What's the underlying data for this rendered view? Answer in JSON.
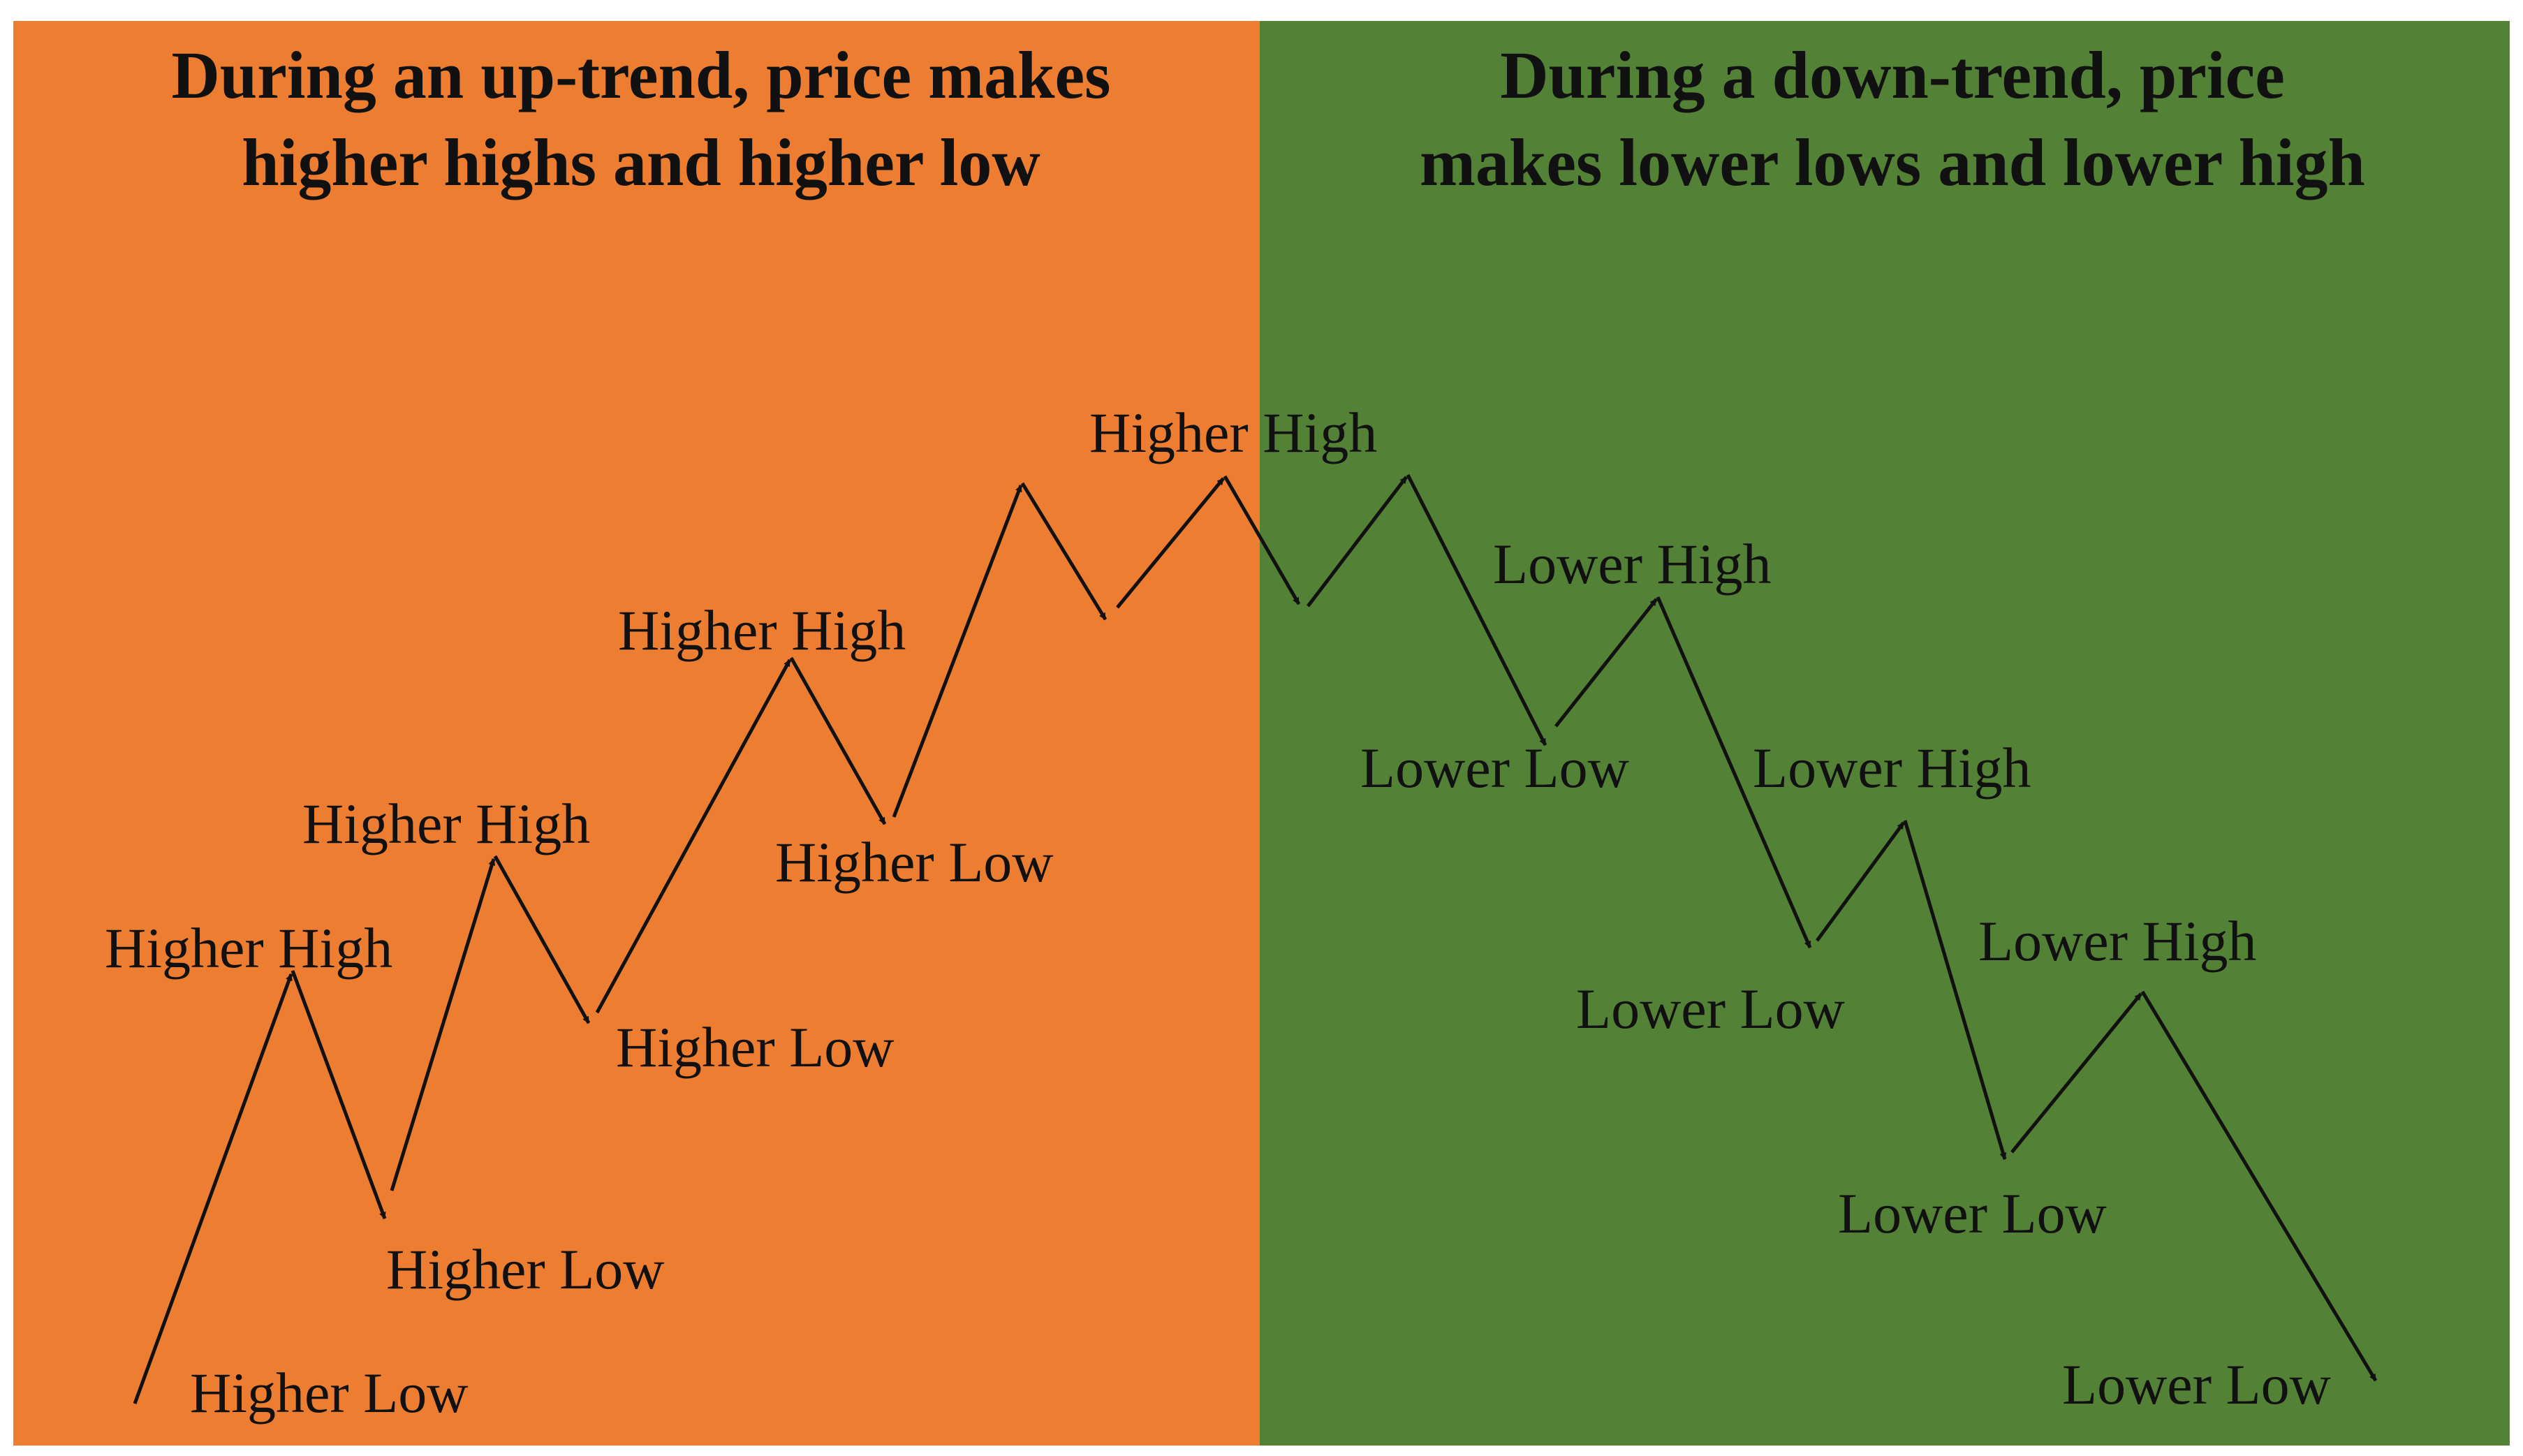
{
  "colors": {
    "uptrend_panel": "#ED7D31",
    "downtrend_panel": "#538135",
    "line": "#111111",
    "text": "#111111"
  },
  "uptrend": {
    "heading_line1": "During an up-trend, price makes",
    "heading_line2": "higher highs and higher low",
    "labels": {
      "higher_low_1": "Higher Low",
      "higher_high_1": "Higher High",
      "higher_low_2": "Higher Low",
      "higher_high_2": "Higher High",
      "higher_low_3": "Higher Low",
      "higher_high_3": "Higher High",
      "higher_low_4": "Higher Low",
      "higher_high_4": "Higher High"
    }
  },
  "downtrend": {
    "heading_line1": "During a down-trend, price",
    "heading_line2": "makes lower lows and lower high",
    "labels": {
      "lower_low_1": "Lower Low",
      "lower_high_1": "Lower High",
      "lower_low_2": "Lower Low",
      "lower_high_2": "Lower High",
      "lower_low_3": "Lower Low",
      "lower_high_3": "Lower High",
      "lower_low_4": "Lower Low"
    }
  }
}
